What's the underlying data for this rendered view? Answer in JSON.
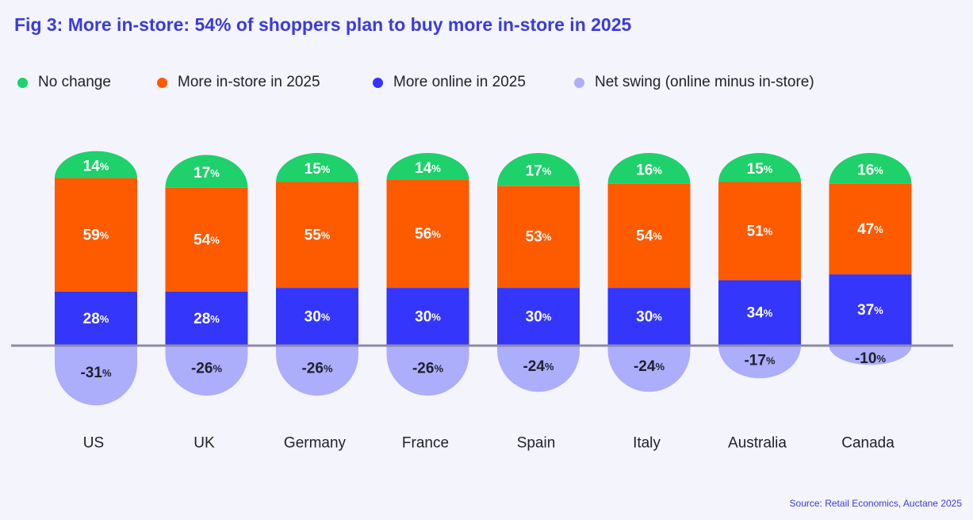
{
  "title": "Fig 3: More in-store: 54% of shoppers plan to buy more in-store in 2025",
  "source": "Source: Retail Economics, Auctane 2025",
  "colors": {
    "background": "#f4f5fc",
    "no_change": "#1fd16a",
    "more_instore": "#fe5a00",
    "more_online": "#3437fb",
    "net_swing": "#acaefb",
    "baseline": "#8e8aa6",
    "title": "#3b3bdb"
  },
  "chart_data": {
    "type": "bar",
    "stacked": true,
    "categories": [
      "US",
      "UK",
      "Germany",
      "France",
      "Spain",
      "Italy",
      "Australia",
      "Canada"
    ],
    "series": [
      {
        "key": "no_change",
        "name": "No change",
        "values": [
          14,
          17,
          15,
          14,
          17,
          16,
          15,
          16
        ]
      },
      {
        "key": "more_instore",
        "name": "More in-store in 2025",
        "values": [
          59,
          54,
          55,
          56,
          53,
          54,
          51,
          47
        ]
      },
      {
        "key": "more_online",
        "name": "More online in 2025",
        "values": [
          28,
          28,
          30,
          30,
          30,
          30,
          34,
          37
        ]
      },
      {
        "key": "net_swing",
        "name": "Net swing (online minus in-store)",
        "values": [
          -31,
          -26,
          -26,
          -26,
          -24,
          -24,
          -17,
          -10
        ]
      }
    ],
    "unit": "%",
    "legend_position": "top-left",
    "grid": false
  }
}
